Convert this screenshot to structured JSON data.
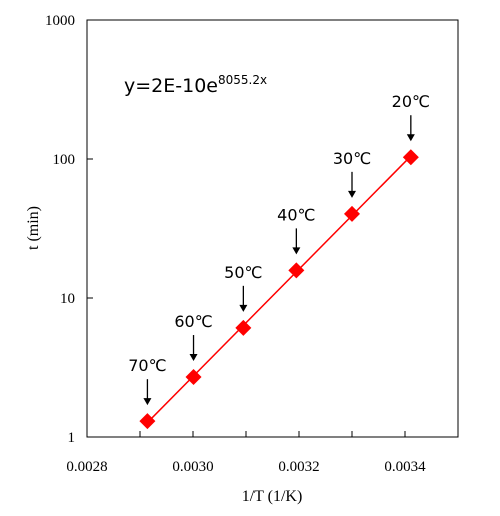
{
  "chart_data": {
    "type": "scatter",
    "xlabel": "1/T (1/K)",
    "ylabel": "t (min)",
    "xlim": [
      0.0028,
      0.0035
    ],
    "ylim": [
      1,
      1000
    ],
    "y_scale": "log",
    "grid": false,
    "x_ticks": [
      "0.0028",
      "0.0030",
      "0.0032",
      "0.0034"
    ],
    "y_ticks": [
      "1",
      "10",
      "100",
      "1000"
    ],
    "series": [
      {
        "color": "#ff0000",
        "marker": "diamond",
        "x": [
          0.002914,
          0.003001,
          0.003095,
          0.003195,
          0.0033,
          0.003411
        ],
        "y": [
          1.3,
          2.7,
          6.1,
          15.8,
          40.3,
          103
        ]
      }
    ],
    "trendline": {
      "color": "#ff0000",
      "equation_base": "y=2E-10e",
      "equation_exponent": "8055.2x"
    },
    "annotations": [
      {
        "text": "70℃",
        "x": 0.002914,
        "y": 1.3
      },
      {
        "text": "60℃",
        "x": 0.003001,
        "y": 2.7
      },
      {
        "text": "50℃",
        "x": 0.003095,
        "y": 6.1
      },
      {
        "text": "40℃",
        "x": 0.003195,
        "y": 15.8
      },
      {
        "text": "30℃",
        "x": 0.0033,
        "y": 40.3
      },
      {
        "text": "20℃",
        "x": 0.003411,
        "y": 103
      }
    ]
  }
}
